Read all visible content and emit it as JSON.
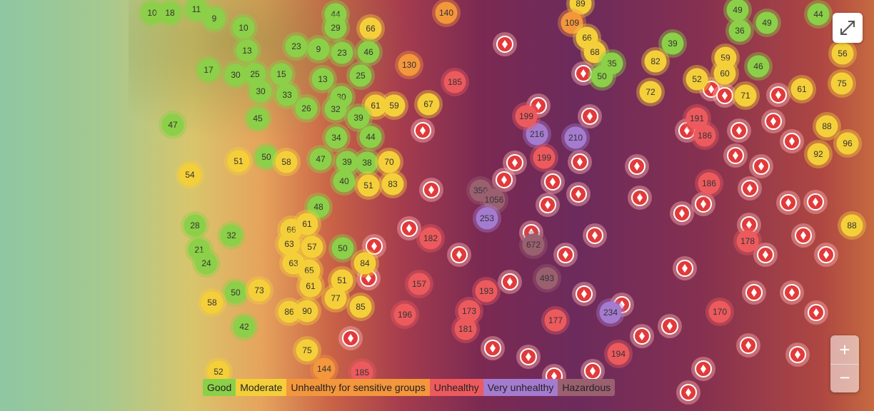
{
  "legend": {
    "items": [
      {
        "label": "Good",
        "color": "#8bd048"
      },
      {
        "label": "Moderate",
        "color": "#f4cf3a"
      },
      {
        "label": "Unhealthy for sensitive groups",
        "color": "#f3963c"
      },
      {
        "label": "Unhealthy",
        "color": "#ec5a5e"
      },
      {
        "label": "Very unhealthy",
        "color": "#a57bd0"
      },
      {
        "label": "Hazardous",
        "color": "#9a6070"
      }
    ]
  },
  "markers": [
    {
      "value": 10,
      "color": "#8bd048"
    },
    {
      "value": 18,
      "color": "#8bd048"
    },
    {
      "value": 11,
      "color": "#8bd048"
    },
    {
      "value": 9,
      "color": "#8bd048"
    },
    {
      "value": 10,
      "color": "#8bd048"
    },
    {
      "value": 44,
      "color": "#8bd048"
    },
    {
      "value": 29,
      "color": "#8bd048"
    },
    {
      "value": 66,
      "color": "#f4cf3a"
    },
    {
      "value": 140,
      "color": "#f3963c"
    },
    {
      "value": 89,
      "color": "#f4cf3a"
    },
    {
      "value": 109,
      "color": "#f3963c"
    },
    {
      "value": 66,
      "color": "#f4cf3a"
    },
    {
      "value": 68,
      "color": "#f4cf3a"
    },
    {
      "value": 35,
      "color": "#8bd048"
    },
    {
      "value": 50,
      "color": "#8bd048"
    },
    {
      "value": 39,
      "color": "#8bd048"
    },
    {
      "value": 82,
      "color": "#f4cf3a"
    },
    {
      "value": 72,
      "color": "#f4cf3a"
    },
    {
      "value": 49,
      "color": "#8bd048"
    },
    {
      "value": 49,
      "color": "#8bd048"
    },
    {
      "value": 44,
      "color": "#8bd048"
    },
    {
      "value": 36,
      "color": "#8bd048"
    },
    {
      "value": 56,
      "color": "#f4cf3a"
    },
    {
      "value": 59,
      "color": "#f4cf3a"
    },
    {
      "value": 60,
      "color": "#f4cf3a"
    },
    {
      "value": 46,
      "color": "#8bd048"
    },
    {
      "value": 52,
      "color": "#f4cf3a"
    },
    {
      "value": 71,
      "color": "#f4cf3a"
    },
    {
      "value": 61,
      "color": "#f4cf3a"
    },
    {
      "value": 75,
      "color": "#f4cf3a"
    },
    {
      "value": 13,
      "color": "#8bd048"
    },
    {
      "value": 23,
      "color": "#8bd048"
    },
    {
      "value": 9,
      "color": "#8bd048"
    },
    {
      "value": 23,
      "color": "#8bd048"
    },
    {
      "value": 46,
      "color": "#8bd048"
    },
    {
      "value": 17,
      "color": "#8bd048"
    },
    {
      "value": 30,
      "color": "#8bd048"
    },
    {
      "value": 25,
      "color": "#8bd048"
    },
    {
      "value": 15,
      "color": "#8bd048"
    },
    {
      "value": 13,
      "color": "#8bd048"
    },
    {
      "value": 25,
      "color": "#8bd048"
    },
    {
      "value": 130,
      "color": "#f3963c"
    },
    {
      "value": 185,
      "color": "#ec5a5e"
    },
    {
      "value": 30,
      "color": "#8bd048"
    },
    {
      "value": 33,
      "color": "#8bd048"
    },
    {
      "value": 30,
      "color": "#8bd048"
    },
    {
      "value": 26,
      "color": "#8bd048"
    },
    {
      "value": 32,
      "color": "#8bd048"
    },
    {
      "value": 61,
      "color": "#f4cf3a"
    },
    {
      "value": 59,
      "color": "#f4cf3a"
    },
    {
      "value": 67,
      "color": "#f4cf3a"
    },
    {
      "value": 47,
      "color": "#8bd048"
    },
    {
      "value": 45,
      "color": "#8bd048"
    },
    {
      "value": 39,
      "color": "#8bd048"
    },
    {
      "value": 34,
      "color": "#8bd048"
    },
    {
      "value": 44,
      "color": "#8bd048"
    },
    {
      "value": 216,
      "color": "#a57bd0"
    },
    {
      "value": 199,
      "color": "#ec5a5e"
    },
    {
      "value": 210,
      "color": "#a57bd0"
    },
    {
      "value": 191,
      "color": "#ec5a5e"
    },
    {
      "value": 186,
      "color": "#ec5a5e"
    },
    {
      "value": 88,
      "color": "#f4cf3a"
    },
    {
      "value": 92,
      "color": "#f4cf3a"
    },
    {
      "value": 96,
      "color": "#f4cf3a"
    },
    {
      "value": 54,
      "color": "#f4cf3a"
    },
    {
      "value": 51,
      "color": "#f4cf3a"
    },
    {
      "value": 50,
      "color": "#8bd048"
    },
    {
      "value": 58,
      "color": "#f4cf3a"
    },
    {
      "value": 47,
      "color": "#8bd048"
    },
    {
      "value": 39,
      "color": "#8bd048"
    },
    {
      "value": 38,
      "color": "#8bd048"
    },
    {
      "value": 70,
      "color": "#f4cf3a"
    },
    {
      "value": 199,
      "color": "#ec5a5e"
    },
    {
      "value": 186,
      "color": "#ec5a5e"
    },
    {
      "value": 40,
      "color": "#8bd048"
    },
    {
      "value": 51,
      "color": "#f4cf3a"
    },
    {
      "value": 83,
      "color": "#f4cf3a"
    },
    {
      "value": 350,
      "color": "#9a6070"
    },
    {
      "value": 1056,
      "color": "#9a6070"
    },
    {
      "value": 253,
      "color": "#a57bd0"
    },
    {
      "value": 48,
      "color": "#8bd048"
    },
    {
      "value": 28,
      "color": "#8bd048"
    },
    {
      "value": 32,
      "color": "#8bd048"
    },
    {
      "value": 66,
      "color": "#f4cf3a"
    },
    {
      "value": 61,
      "color": "#f4cf3a"
    },
    {
      "value": 57,
      "color": "#f4cf3a"
    },
    {
      "value": 63,
      "color": "#f4cf3a"
    },
    {
      "value": 182,
      "color": "#ec5a5e"
    },
    {
      "value": 672,
      "color": "#9a6070"
    },
    {
      "value": 178,
      "color": "#ec5a5e"
    },
    {
      "value": 88,
      "color": "#f4cf3a"
    },
    {
      "value": 21,
      "color": "#8bd048"
    },
    {
      "value": 24,
      "color": "#8bd048"
    },
    {
      "value": 50,
      "color": "#8bd048"
    },
    {
      "value": 84,
      "color": "#f4cf3a"
    },
    {
      "value": 63,
      "color": "#f4cf3a"
    },
    {
      "value": 65,
      "color": "#f4cf3a"
    },
    {
      "value": 51,
      "color": "#f4cf3a"
    },
    {
      "value": 493,
      "color": "#9a6070"
    },
    {
      "value": 61,
      "color": "#f4cf3a"
    },
    {
      "value": 157,
      "color": "#ec5a5e"
    },
    {
      "value": 193,
      "color": "#ec5a5e"
    },
    {
      "value": 50,
      "color": "#8bd048"
    },
    {
      "value": 73,
      "color": "#f4cf3a"
    },
    {
      "value": 58,
      "color": "#f4cf3a"
    },
    {
      "value": 77,
      "color": "#f4cf3a"
    },
    {
      "value": 85,
      "color": "#f4cf3a"
    },
    {
      "value": 86,
      "color": "#f4cf3a"
    },
    {
      "value": 90,
      "color": "#f4cf3a"
    },
    {
      "value": 42,
      "color": "#8bd048"
    },
    {
      "value": 196,
      "color": "#ec5a5e"
    },
    {
      "value": 173,
      "color": "#ec5a5e"
    },
    {
      "value": 177,
      "color": "#ec5a5e"
    },
    {
      "value": 234,
      "color": "#a57bd0"
    },
    {
      "value": 170,
      "color": "#ec5a5e"
    },
    {
      "value": 181,
      "color": "#ec5a5e"
    },
    {
      "value": 75,
      "color": "#f4cf3a"
    },
    {
      "value": 194,
      "color": "#ec5a5e"
    },
    {
      "value": 52,
      "color": "#f4cf3a"
    },
    {
      "value": 185,
      "color": "#ec5a5e"
    },
    {
      "value": 144,
      "color": "#f3963c"
    }
  ]
}
